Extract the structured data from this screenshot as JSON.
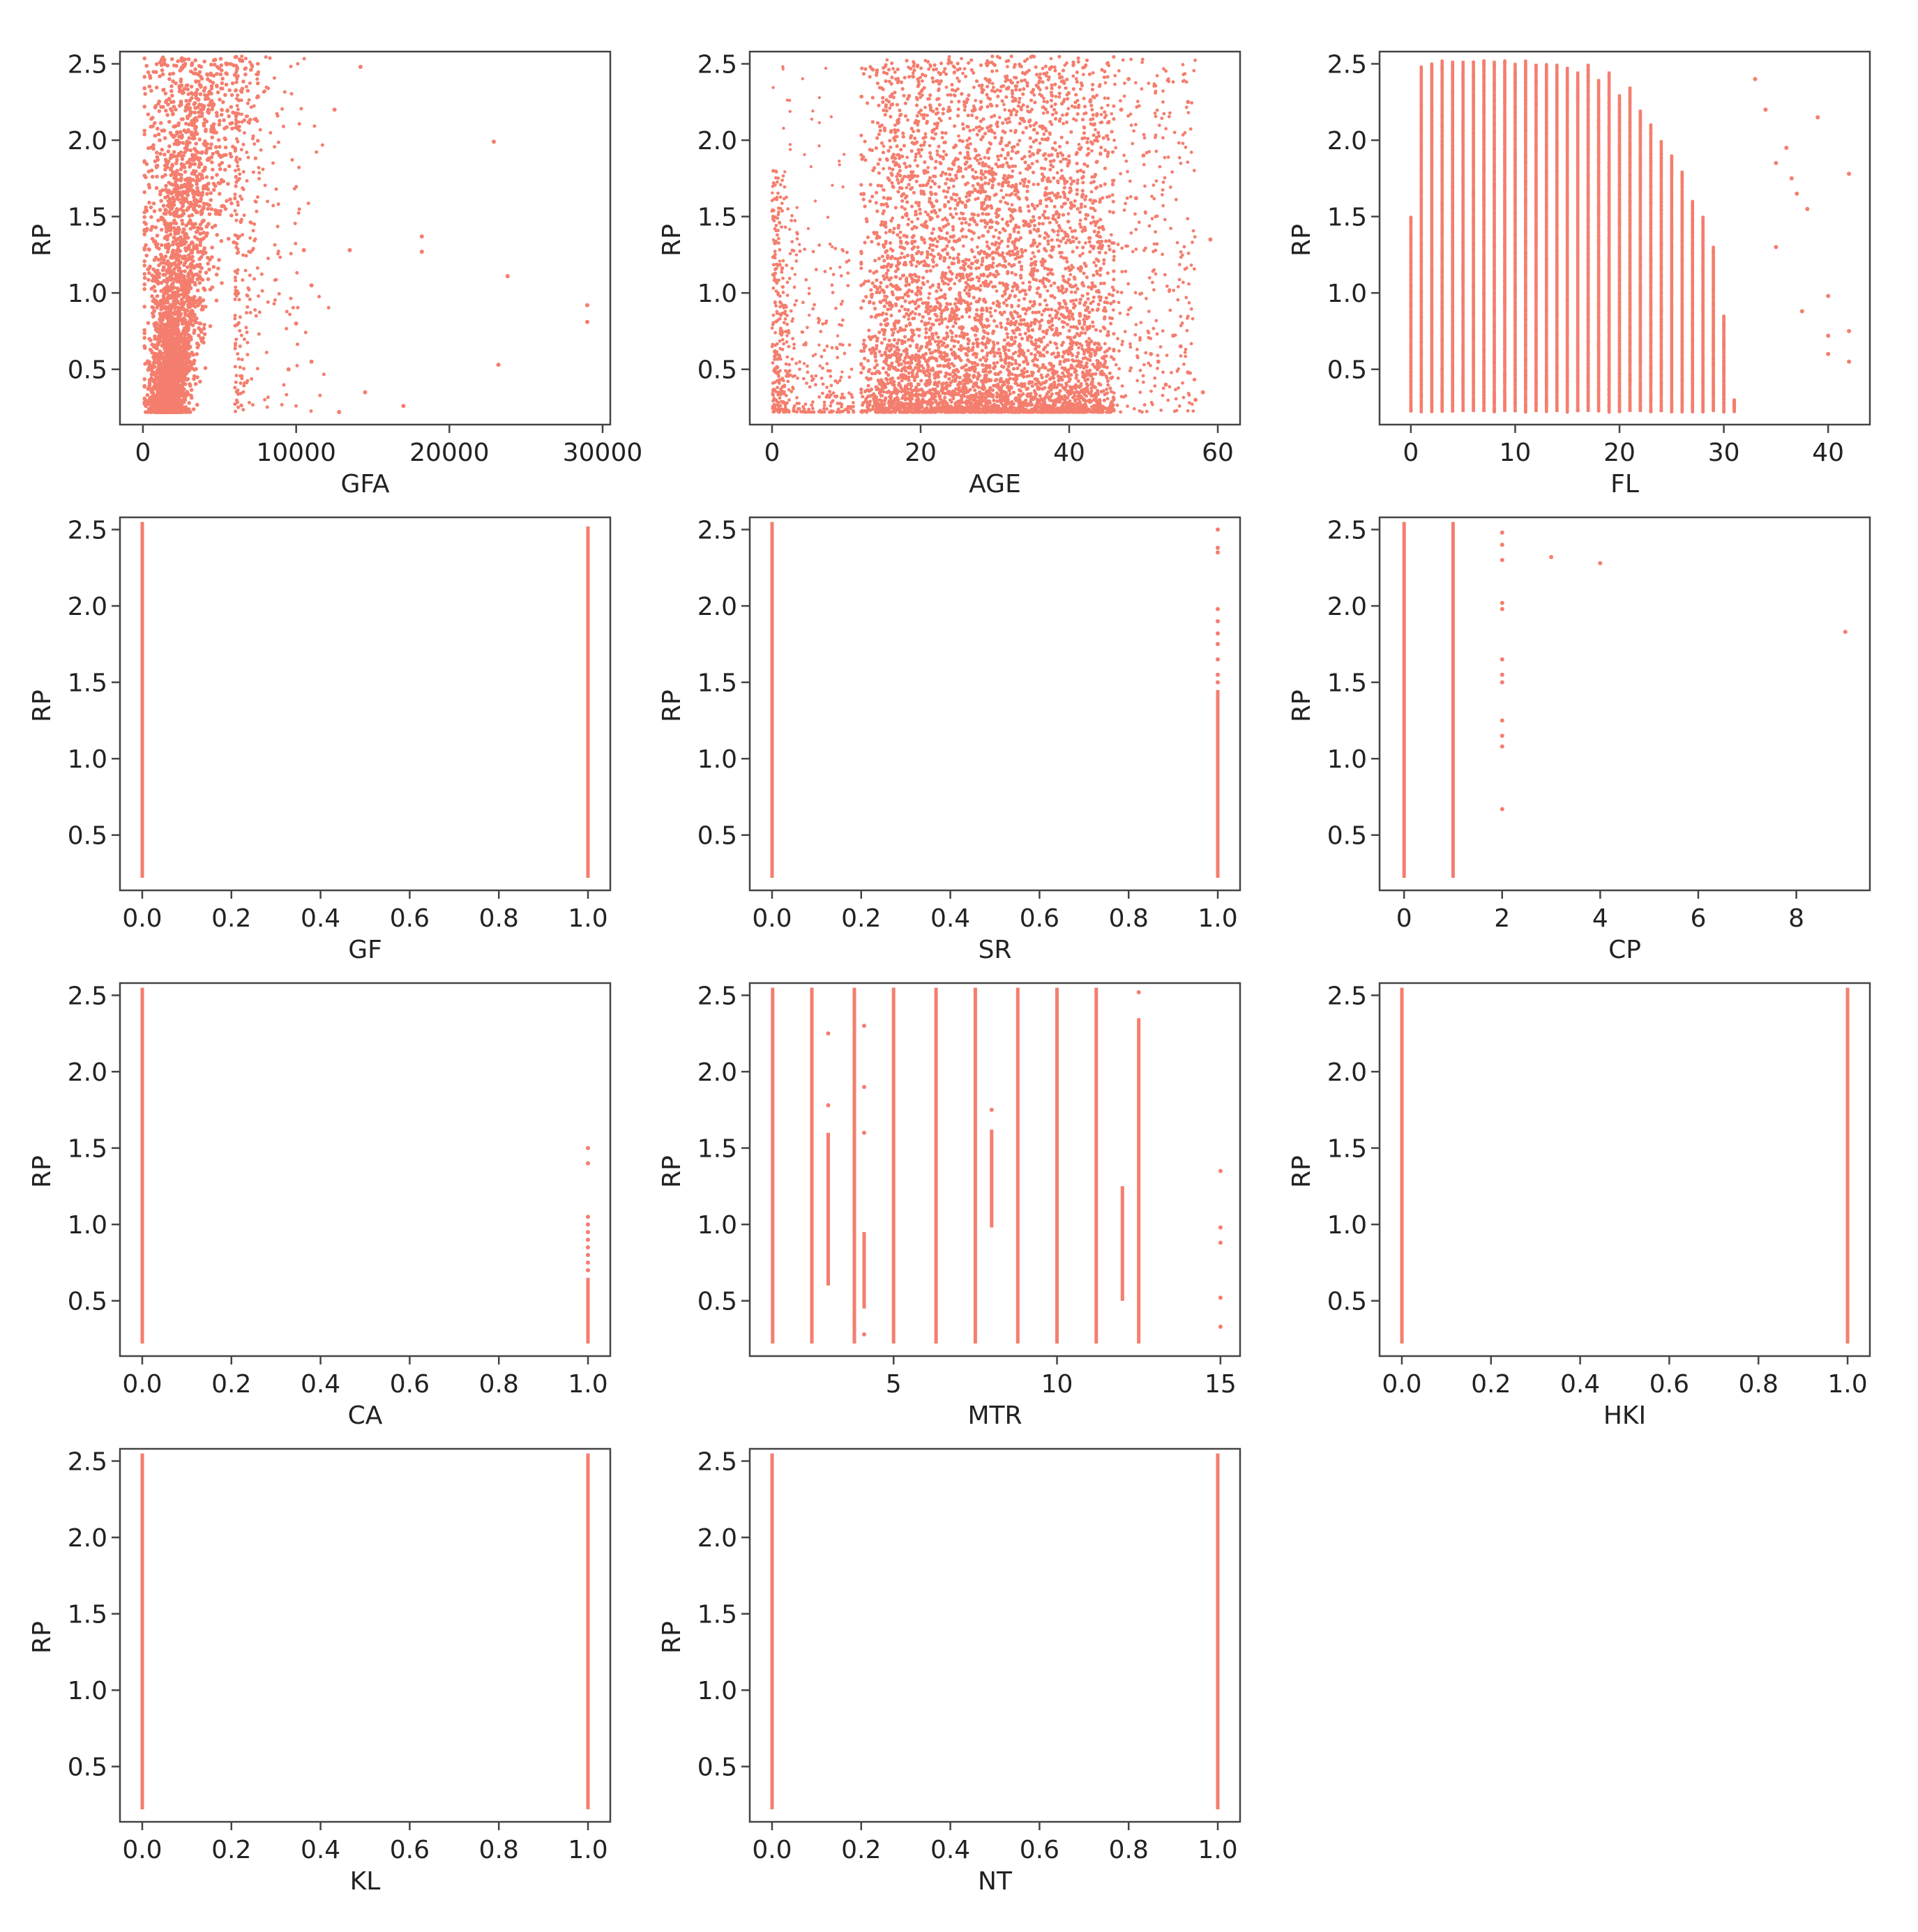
{
  "figure": {
    "type": "scatter-grid",
    "point_color": "#f47e6e"
  },
  "chart_data": [
    {
      "type": "scatter",
      "xlabel": "GFA",
      "ylabel": "RP",
      "xlim": [
        -1500,
        30500
      ],
      "ylim": [
        0.17,
        2.58
      ],
      "xticks": [
        0,
        10000,
        20000,
        30000
      ],
      "xtick_labels": [
        "0",
        "10000",
        "20000",
        "30000"
      ],
      "yticks": [
        0.5,
        1.0,
        1.5,
        2.0,
        2.5
      ],
      "ytick_labels": [
        "0.5",
        "1.0",
        "1.5",
        "2.0",
        "2.5"
      ],
      "distribution": {
        "kind": "skewed",
        "dense_range": [
          0,
          6000
        ],
        "sparse_range": [
          6000,
          12500
        ],
        "count": 3200
      },
      "points": [
        [
          12500,
          2.2
        ],
        [
          14200,
          2.48
        ],
        [
          13500,
          1.28
        ],
        [
          10500,
          1.28
        ],
        [
          18200,
          1.37
        ],
        [
          18200,
          1.27
        ],
        [
          22900,
          1.99
        ],
        [
          23800,
          1.11
        ],
        [
          29000,
          0.92
        ],
        [
          29000,
          0.81
        ],
        [
          23200,
          0.53
        ],
        [
          17000,
          0.26
        ],
        [
          14500,
          0.35
        ],
        [
          12800,
          0.22
        ],
        [
          11000,
          0.55
        ],
        [
          9500,
          0.5
        ],
        [
          11000,
          1.05
        ],
        [
          10000,
          0.8
        ]
      ]
    },
    {
      "type": "scatter",
      "xlabel": "AGE",
      "ylabel": "RP",
      "xlim": [
        -3,
        63
      ],
      "ylim": [
        0.17,
        2.58
      ],
      "xticks": [
        0,
        20,
        40,
        60
      ],
      "xtick_labels": [
        "0",
        "20",
        "40",
        "60"
      ],
      "yticks": [
        0.5,
        1.0,
        1.5,
        2.0,
        2.5
      ],
      "ytick_labels": [
        "0.5",
        "1.0",
        "1.5",
        "2.0",
        "2.5"
      ],
      "distribution": {
        "kind": "age",
        "count": 4200
      },
      "points": [
        [
          52,
          0.55
        ],
        [
          53,
          0.4
        ],
        [
          55,
          0.65
        ],
        [
          56,
          0.48
        ],
        [
          58,
          0.35
        ],
        [
          57,
          0.3
        ],
        [
          54,
          0.72
        ],
        [
          51,
          0.6
        ],
        [
          59,
          1.35
        ],
        [
          50,
          1.9
        ],
        [
          47,
          2.2
        ],
        [
          56,
          2.25
        ],
        [
          48,
          2.4
        ],
        [
          49,
          1.62
        ]
      ]
    },
    {
      "type": "scatter",
      "xlabel": "FL",
      "ylabel": "RP",
      "xlim": [
        -3,
        44
      ],
      "ylim": [
        0.17,
        2.58
      ],
      "xticks": [
        0,
        10,
        20,
        30,
        40
      ],
      "xtick_labels": [
        "0",
        "10",
        "20",
        "30",
        "40"
      ],
      "yticks": [
        0.5,
        1.0,
        1.5,
        2.0,
        2.5
      ],
      "ytick_labels": [
        "0.5",
        "1.0",
        "1.5",
        "2.0",
        "2.5"
      ],
      "distribution": {
        "kind": "stripes",
        "stripes": [
          [
            0,
            1.5
          ],
          [
            1,
            2.48
          ],
          [
            2,
            2.5
          ],
          [
            3,
            2.52
          ],
          [
            4,
            2.52
          ],
          [
            5,
            2.52
          ],
          [
            6,
            2.52
          ],
          [
            7,
            2.52
          ],
          [
            8,
            2.52
          ],
          [
            9,
            2.52
          ],
          [
            10,
            2.5
          ],
          [
            11,
            2.52
          ],
          [
            12,
            2.5
          ],
          [
            13,
            2.5
          ],
          [
            14,
            2.5
          ],
          [
            15,
            2.48
          ],
          [
            16,
            2.45
          ],
          [
            17,
            2.5
          ],
          [
            18,
            2.4
          ],
          [
            19,
            2.45
          ],
          [
            20,
            2.3
          ],
          [
            21,
            2.35
          ],
          [
            22,
            2.2
          ],
          [
            23,
            2.1
          ],
          [
            24,
            2.0
          ],
          [
            25,
            1.9
          ],
          [
            26,
            1.8
          ],
          [
            27,
            1.6
          ],
          [
            28,
            1.5
          ],
          [
            29,
            1.3
          ],
          [
            30,
            0.85
          ],
          [
            31,
            0.3
          ]
        ]
      },
      "points": [
        [
          33,
          2.4
        ],
        [
          34,
          2.2
        ],
        [
          35,
          1.85
        ],
        [
          36,
          1.95
        ],
        [
          37,
          1.65
        ],
        [
          38,
          1.55
        ],
        [
          39,
          2.15
        ],
        [
          40,
          0.98
        ],
        [
          40,
          0.6
        ],
        [
          40,
          0.72
        ],
        [
          42,
          0.75
        ],
        [
          42,
          0.55
        ],
        [
          42,
          1.78
        ],
        [
          36.5,
          1.75
        ],
        [
          35,
          1.3
        ],
        [
          37.5,
          0.88
        ]
      ]
    },
    {
      "type": "scatter",
      "xlabel": "GF",
      "ylabel": "RP",
      "xlim": [
        -0.05,
        1.05
      ],
      "ylim": [
        0.17,
        2.58
      ],
      "xticks": [
        0.0,
        0.2,
        0.4,
        0.6,
        0.8,
        1.0
      ],
      "xtick_labels": [
        "0.0",
        "0.2",
        "0.4",
        "0.6",
        "0.8",
        "1.0"
      ],
      "yticks": [
        0.5,
        1.0,
        1.5,
        2.0,
        2.5
      ],
      "ytick_labels": [
        "0.5",
        "1.0",
        "1.5",
        "2.0",
        "2.5"
      ],
      "distribution": {
        "kind": "lines",
        "lines": [
          [
            0,
            0.22,
            2.55
          ],
          [
            1,
            0.22,
            2.52
          ]
        ]
      },
      "points": []
    },
    {
      "type": "scatter",
      "xlabel": "SR",
      "ylabel": "RP",
      "xlim": [
        -0.05,
        1.05
      ],
      "ylim": [
        0.17,
        2.58
      ],
      "xticks": [
        0.0,
        0.2,
        0.4,
        0.6,
        0.8,
        1.0
      ],
      "xtick_labels": [
        "0.0",
        "0.2",
        "0.4",
        "0.6",
        "0.8",
        "1.0"
      ],
      "yticks": [
        0.5,
        1.0,
        1.5,
        2.0,
        2.5
      ],
      "ytick_labels": [
        "0.5",
        "1.0",
        "1.5",
        "2.0",
        "2.5"
      ],
      "distribution": {
        "kind": "lines",
        "lines": [
          [
            0,
            0.22,
            2.55
          ],
          [
            1,
            0.22,
            1.45
          ]
        ]
      },
      "points": [
        [
          1,
          2.5
        ],
        [
          1,
          2.38
        ],
        [
          1,
          2.35
        ],
        [
          1,
          1.98
        ],
        [
          1,
          1.9
        ],
        [
          1,
          1.82
        ],
        [
          1,
          1.75
        ],
        [
          1,
          1.65
        ],
        [
          1,
          1.55
        ],
        [
          1,
          1.5
        ]
      ]
    },
    {
      "type": "scatter",
      "xlabel": "CP",
      "ylabel": "RP",
      "xlim": [
        -0.5,
        9.5
      ],
      "ylim": [
        0.17,
        2.58
      ],
      "xticks": [
        0,
        2,
        4,
        6,
        8
      ],
      "xtick_labels": [
        "0",
        "2",
        "4",
        "6",
        "8"
      ],
      "yticks": [
        0.5,
        1.0,
        1.5,
        2.0,
        2.5
      ],
      "ytick_labels": [
        "0.5",
        "1.0",
        "1.5",
        "2.0",
        "2.5"
      ],
      "distribution": {
        "kind": "lines",
        "lines": [
          [
            0,
            0.22,
            2.55
          ],
          [
            1,
            0.22,
            2.55
          ]
        ]
      },
      "points": [
        [
          2,
          2.48
        ],
        [
          2,
          2.4
        ],
        [
          2,
          2.3
        ],
        [
          2,
          2.02
        ],
        [
          2,
          1.98
        ],
        [
          2,
          1.65
        ],
        [
          2,
          1.55
        ],
        [
          2,
          1.5
        ],
        [
          2,
          1.25
        ],
        [
          2,
          1.15
        ],
        [
          2,
          1.08
        ],
        [
          2,
          0.67
        ],
        [
          3,
          2.32
        ],
        [
          4,
          2.28
        ],
        [
          9,
          1.83
        ]
      ]
    },
    {
      "type": "scatter",
      "xlabel": "CA",
      "ylabel": "RP",
      "xlim": [
        -0.05,
        1.05
      ],
      "ylim": [
        0.17,
        2.58
      ],
      "xticks": [
        0.0,
        0.2,
        0.4,
        0.6,
        0.8,
        1.0
      ],
      "xtick_labels": [
        "0.0",
        "0.2",
        "0.4",
        "0.6",
        "0.8",
        "1.0"
      ],
      "yticks": [
        0.5,
        1.0,
        1.5,
        2.0,
        2.5
      ],
      "ytick_labels": [
        "0.5",
        "1.0",
        "1.5",
        "2.0",
        "2.5"
      ],
      "distribution": {
        "kind": "lines",
        "lines": [
          [
            0,
            0.22,
            2.55
          ],
          [
            1,
            0.22,
            0.65
          ]
        ]
      },
      "points": [
        [
          1,
          1.5
        ],
        [
          1,
          1.4
        ],
        [
          1,
          1.05
        ],
        [
          1,
          1.0
        ],
        [
          1,
          0.95
        ],
        [
          1,
          0.9
        ],
        [
          1,
          0.85
        ],
        [
          1,
          0.8
        ],
        [
          1,
          0.75
        ],
        [
          1,
          0.7
        ]
      ]
    },
    {
      "type": "scatter",
      "xlabel": "MTR",
      "ylabel": "RP",
      "xlim": [
        0.6,
        15.6
      ],
      "ylim": [
        0.17,
        2.58
      ],
      "xticks": [
        5,
        10,
        15
      ],
      "xtick_labels": [
        "5",
        "10",
        "15"
      ],
      "yticks": [
        0.5,
        1.0,
        1.5,
        2.0,
        2.5
      ],
      "ytick_labels": [
        "0.5",
        "1.0",
        "1.5",
        "2.0",
        "2.5"
      ],
      "distribution": {
        "kind": "lines",
        "lines": [
          [
            1.3,
            0.22,
            2.55
          ],
          [
            2.5,
            0.22,
            2.55
          ],
          [
            3.8,
            0.22,
            2.55
          ],
          [
            5.0,
            0.22,
            2.55
          ],
          [
            6.3,
            0.22,
            2.55
          ],
          [
            7.5,
            0.22,
            2.55
          ],
          [
            8.8,
            0.22,
            2.55
          ],
          [
            10.0,
            0.22,
            2.55
          ],
          [
            11.2,
            0.22,
            2.55
          ],
          [
            12.5,
            0.22,
            2.35
          ],
          [
            12.0,
            0.5,
            1.25
          ],
          [
            8.0,
            0.98,
            1.62
          ],
          [
            3.0,
            0.6,
            1.6
          ],
          [
            4.1,
            0.45,
            0.95
          ]
        ]
      },
      "points": [
        [
          3.0,
          1.78
        ],
        [
          3.0,
          2.25
        ],
        [
          4.1,
          2.3
        ],
        [
          4.1,
          1.9
        ],
        [
          4.1,
          1.6
        ],
        [
          4.1,
          0.28
        ],
        [
          8.0,
          1.75
        ],
        [
          12.5,
          2.52
        ],
        [
          15,
          1.35
        ],
        [
          15,
          0.98
        ],
        [
          15,
          0.88
        ],
        [
          15,
          0.52
        ],
        [
          15,
          0.33
        ]
      ]
    },
    {
      "type": "scatter",
      "xlabel": "HKI",
      "ylabel": "RP",
      "xlim": [
        -0.05,
        1.05
      ],
      "ylim": [
        0.17,
        2.58
      ],
      "xticks": [
        0.0,
        0.2,
        0.4,
        0.6,
        0.8,
        1.0
      ],
      "xtick_labels": [
        "0.0",
        "0.2",
        "0.4",
        "0.6",
        "0.8",
        "1.0"
      ],
      "yticks": [
        0.5,
        1.0,
        1.5,
        2.0,
        2.5
      ],
      "ytick_labels": [
        "0.5",
        "1.0",
        "1.5",
        "2.0",
        "2.5"
      ],
      "distribution": {
        "kind": "lines",
        "lines": [
          [
            0,
            0.22,
            2.55
          ],
          [
            1,
            0.22,
            2.55
          ]
        ]
      },
      "points": []
    },
    {
      "type": "scatter",
      "xlabel": "KL",
      "ylabel": "RP",
      "xlim": [
        -0.05,
        1.05
      ],
      "ylim": [
        0.17,
        2.58
      ],
      "xticks": [
        0.0,
        0.2,
        0.4,
        0.6,
        0.8,
        1.0
      ],
      "xtick_labels": [
        "0.0",
        "0.2",
        "0.4",
        "0.6",
        "0.8",
        "1.0"
      ],
      "yticks": [
        0.5,
        1.0,
        1.5,
        2.0,
        2.5
      ],
      "ytick_labels": [
        "0.5",
        "1.0",
        "1.5",
        "2.0",
        "2.5"
      ],
      "distribution": {
        "kind": "lines",
        "lines": [
          [
            0,
            0.22,
            2.55
          ],
          [
            1,
            0.22,
            2.55
          ]
        ]
      },
      "points": []
    },
    {
      "type": "scatter",
      "xlabel": "NT",
      "ylabel": "RP",
      "xlim": [
        -0.05,
        1.05
      ],
      "ylim": [
        0.17,
        2.58
      ],
      "xticks": [
        0.0,
        0.2,
        0.4,
        0.6,
        0.8,
        1.0
      ],
      "xtick_labels": [
        "0.0",
        "0.2",
        "0.4",
        "0.6",
        "0.8",
        "1.0"
      ],
      "yticks": [
        0.5,
        1.0,
        1.5,
        2.0,
        2.5
      ],
      "ytick_labels": [
        "0.5",
        "1.0",
        "1.5",
        "2.0",
        "2.5"
      ],
      "distribution": {
        "kind": "lines",
        "lines": [
          [
            0,
            0.22,
            2.55
          ],
          [
            1,
            0.22,
            2.55
          ]
        ]
      },
      "points": []
    }
  ]
}
